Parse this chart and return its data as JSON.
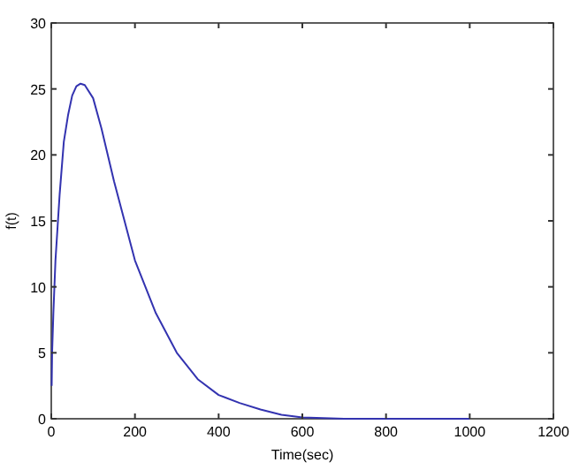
{
  "chart_data": {
    "type": "line",
    "xlabel": "Time(sec)",
    "ylabel": "f(t)",
    "xlim": [
      0,
      1200
    ],
    "ylim": [
      0,
      30
    ],
    "xticks": [
      0,
      200,
      400,
      600,
      800,
      1000,
      1200
    ],
    "yticks": [
      0,
      5,
      10,
      15,
      20,
      25,
      30
    ],
    "grid": false,
    "marker": "none",
    "line_style": "solid",
    "series": [
      {
        "color": "#3333b0",
        "x": [
          1,
          2,
          5,
          10,
          20,
          30,
          40,
          50,
          60,
          70,
          80,
          100,
          120,
          150,
          200,
          250,
          300,
          350,
          400,
          450,
          500,
          550,
          600,
          700,
          800,
          1000
        ],
        "values": [
          2.5,
          5,
          8,
          12,
          17,
          21,
          23,
          24.5,
          25.2,
          25.4,
          25.3,
          24.3,
          22,
          18,
          12,
          8,
          5,
          3,
          1.8,
          1.2,
          0.7,
          0.3,
          0.1,
          0,
          0,
          0
        ]
      }
    ]
  }
}
